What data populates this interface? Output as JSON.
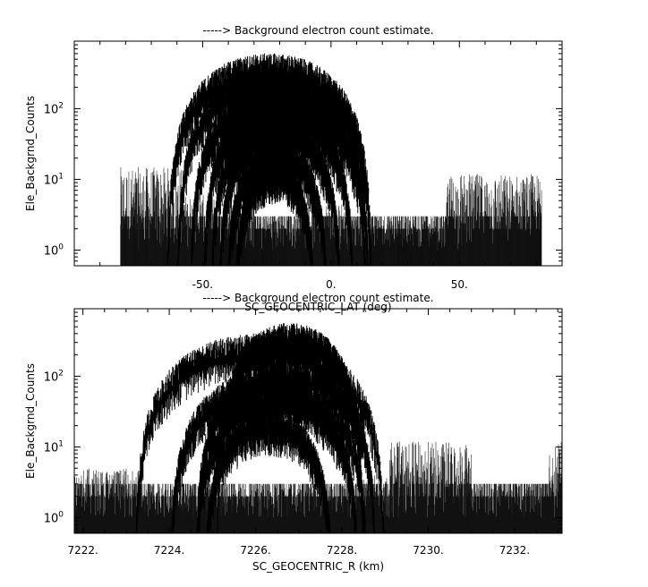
{
  "chart_data": [
    {
      "type": "line",
      "title": "-----> Background electron count estimate.",
      "xlabel": "SC_GEOCENTRIC_LAT (deg)",
      "ylabel": "Ele_Backgrnd_Counts",
      "y_scale": "log",
      "xlim": [
        -100,
        90
      ],
      "ylim": [
        0.6,
        900
      ],
      "x_ticks": [
        -50,
        0,
        50
      ],
      "x_tick_labels": [
        "-50.",
        "0.",
        "50."
      ],
      "y_ticks": [
        1,
        10,
        100
      ],
      "y_tick_labels": [
        "10^0",
        "10^1",
        "10^2"
      ],
      "noise": {
        "x_range": [
          -82,
          82
        ],
        "floor": [
          1,
          2,
          3
        ],
        "segments": [
          {
            "x_range": [
              -82,
              -57
            ],
            "peak": 15
          },
          {
            "x_range": [
              -57,
              -30
            ],
            "peak": 6
          },
          {
            "x_range": [
              -12,
              8
            ],
            "peak": 5
          },
          {
            "x_range": [
              8,
              45
            ],
            "peak": 3
          },
          {
            "x_range": [
              45,
              82
            ],
            "peak": 12
          }
        ]
      },
      "series": [
        {
          "center": -24,
          "half_width": 40,
          "peak": 450
        },
        {
          "center": -22,
          "half_width": 38,
          "peak": 300
        },
        {
          "center": -20,
          "half_width": 35,
          "peak": 180
        },
        {
          "center": -18,
          "half_width": 32,
          "peak": 130
        },
        {
          "center": -19,
          "half_width": 28,
          "peak": 90
        },
        {
          "center": -20,
          "half_width": 24,
          "peak": 55
        },
        {
          "center": -21,
          "half_width": 20,
          "peak": 28
        },
        {
          "center": -22,
          "half_width": 16,
          "peak": 15
        }
      ]
    },
    {
      "type": "line",
      "title": "-----> Background electron count estimate.",
      "xlabel": "SC_GEOCENTRIC_R (km)",
      "ylabel": "Ele_Backgrnd_Counts",
      "y_scale": "log",
      "xlim": [
        7221.8,
        7233.1
      ],
      "ylim": [
        0.6,
        900
      ],
      "x_ticks": [
        7222,
        7224,
        7226,
        7228,
        7230,
        7232
      ],
      "x_tick_labels": [
        "7222.",
        "7224.",
        "7226.",
        "7228.",
        "7230.",
        "7232."
      ],
      "y_ticks": [
        1,
        10,
        100
      ],
      "y_tick_labels": [
        "10^0",
        "10^1",
        "10^2"
      ],
      "noise": {
        "x_range": [
          7221.8,
          7233.1
        ],
        "floor": [
          1,
          2,
          3
        ],
        "segments": [
          {
            "x_range": [
              7221.8,
              7223.3
            ],
            "peak": 5
          },
          {
            "x_range": [
              7228.4,
              7229.1
            ],
            "peak": 4
          },
          {
            "x_range": [
              7229.1,
              7231.0
            ],
            "peak": 12
          },
          {
            "x_range": [
              7231.0,
              7232.8
            ],
            "peak": 3
          },
          {
            "x_range": [
              7232.8,
              7233.1
            ],
            "peak": 12
          }
        ]
      },
      "series": [
        {
          "center": 7226.8,
          "half_width": 1.7,
          "peak": 420
        },
        {
          "center": 7226.1,
          "half_width": 2.9,
          "peak": 300
        },
        {
          "center": 7226.7,
          "half_width": 2.1,
          "peak": 130
        },
        {
          "center": 7226.3,
          "half_width": 2.3,
          "peak": 90
        },
        {
          "center": 7226.5,
          "half_width": 1.9,
          "peak": 55
        },
        {
          "center": 7226.3,
          "half_width": 1.5,
          "peak": 25
        }
      ]
    }
  ]
}
